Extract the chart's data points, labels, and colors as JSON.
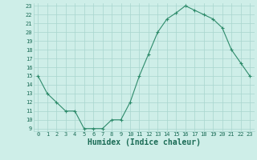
{
  "x": [
    0,
    1,
    2,
    3,
    4,
    5,
    6,
    7,
    8,
    9,
    10,
    11,
    12,
    13,
    14,
    15,
    16,
    17,
    18,
    19,
    20,
    21,
    22,
    23
  ],
  "y": [
    15,
    13,
    12,
    11,
    11,
    9,
    9,
    9,
    10,
    10,
    12,
    15,
    17.5,
    20,
    21.5,
    22.2,
    23,
    22.5,
    22,
    21.5,
    20.5,
    18,
    16.5,
    15
  ],
  "line_color": "#2e8b6b",
  "marker": "+",
  "marker_color": "#2e8b6b",
  "bg_color": "#ceeee8",
  "grid_color": "#a8d5ce",
  "xlabel": "Humidex (Indice chaleur)",
  "xlabel_fontsize": 7,
  "xlabel_color": "#1a6b55",
  "tick_color": "#1a6b55",
  "tick_fontsize": 5,
  "ylim": [
    9,
    23
  ],
  "xlim": [
    -0.5,
    23.5
  ],
  "yticks": [
    9,
    10,
    11,
    12,
    13,
    14,
    15,
    16,
    17,
    18,
    19,
    20,
    21,
    22,
    23
  ],
  "xticks": [
    0,
    1,
    2,
    3,
    4,
    5,
    6,
    7,
    8,
    9,
    10,
    11,
    12,
    13,
    14,
    15,
    16,
    17,
    18,
    19,
    20,
    21,
    22,
    23
  ]
}
